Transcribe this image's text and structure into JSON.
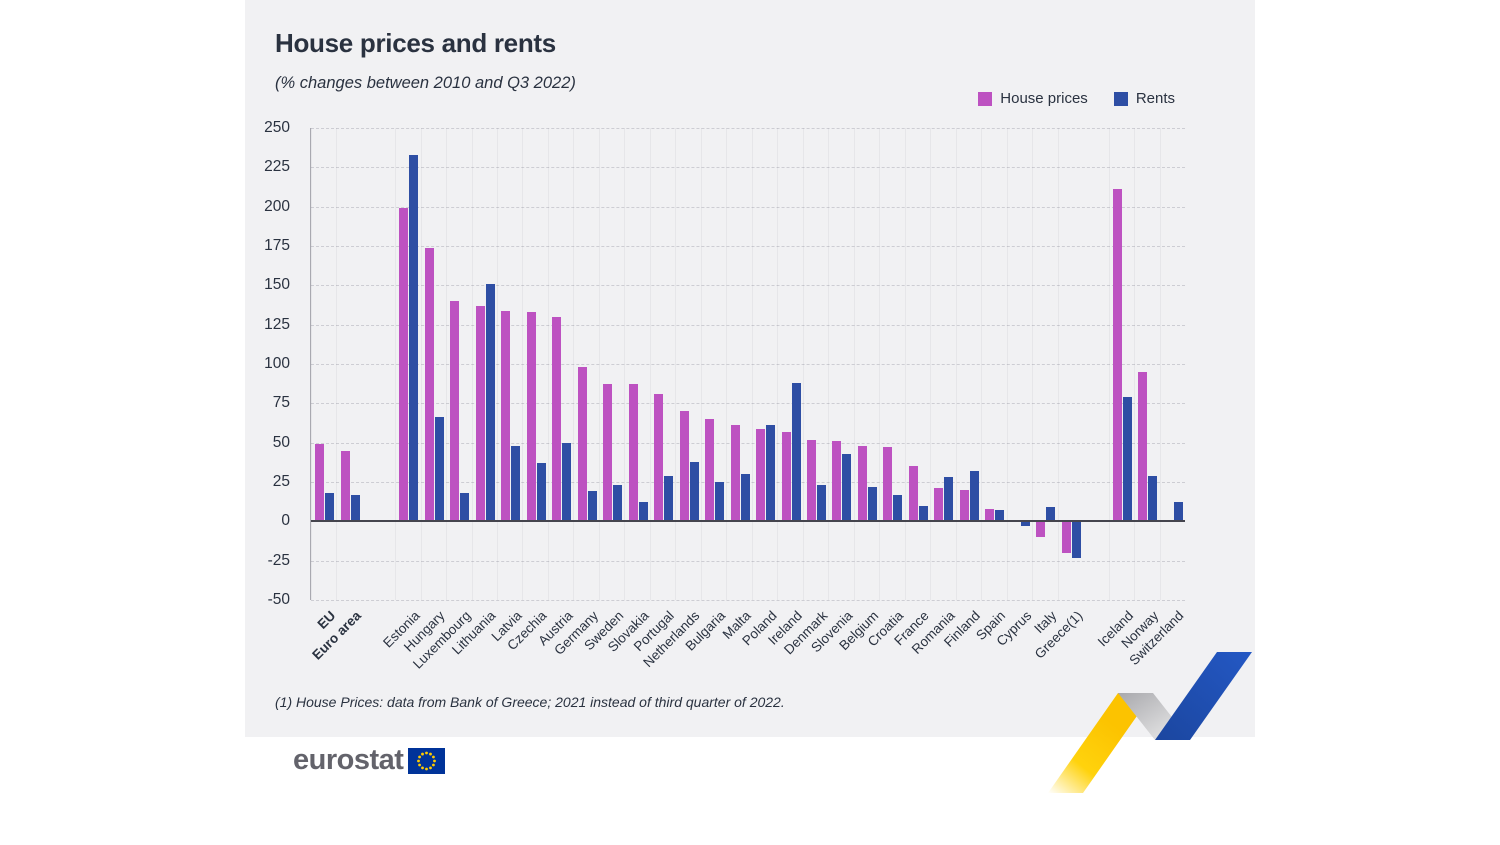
{
  "header": {
    "title": "House prices and rents",
    "subtitle": "(% changes between 2010 and Q3 2022)"
  },
  "legend": [
    {
      "label": "House prices",
      "color": "#bd52c1"
    },
    {
      "label": "Rents",
      "color": "#2e4ea4"
    }
  ],
  "chart_data": {
    "type": "bar",
    "title": "House prices and rents",
    "subtitle": "(% changes between 2010 and Q3 2022)",
    "ylabel": "% change",
    "ylim": [
      -50,
      250
    ],
    "ytick_step": 25,
    "grid": true,
    "legend_position": "top-right",
    "categories": [
      "EU",
      "Euro area",
      "Estonia",
      "Hungary",
      "Luxembourg",
      "Lithuania",
      "Latvia",
      "Czechia",
      "Austria",
      "Germany",
      "Sweden",
      "Slovakia",
      "Portugal",
      "Netherlands",
      "Bulgaria",
      "Malta",
      "Poland",
      "Ireland",
      "Denmark",
      "Slovenia",
      "Belgium",
      "Croatia",
      "France",
      "Romania",
      "Finland",
      "Spain",
      "Cyprus",
      "Italy",
      "Greece(1)",
      "Iceland",
      "Norway",
      "Switzerland"
    ],
    "bold_categories": [
      "EU",
      "Euro area"
    ],
    "group_gaps": [
      {
        "after_index": 1,
        "size": 1.3
      },
      {
        "after_index": 28,
        "size": 1.0
      }
    ],
    "series": [
      {
        "name": "House prices",
        "color": "#bd52c1",
        "values": [
          49,
          45,
          199,
          174,
          140,
          137,
          134,
          133,
          130,
          98,
          87,
          87,
          81,
          70,
          65,
          61,
          59,
          57,
          52,
          51,
          48,
          47,
          35,
          21,
          20,
          8,
          1,
          -10,
          -20,
          211,
          95,
          null
        ]
      },
      {
        "name": "Rents",
        "color": "#2e4ea4",
        "values": [
          18,
          17,
          233,
          66,
          18,
          151,
          48,
          37,
          50,
          19,
          23,
          12,
          29,
          38,
          25,
          30,
          61,
          88,
          23,
          43,
          22,
          17,
          10,
          28,
          32,
          7,
          -3,
          9,
          -23,
          79,
          29,
          12
        ]
      }
    ]
  },
  "footnote": {
    "text": "(1) House Prices: data from Bank of Greece; 2021 instead of third quarter of 2022."
  },
  "logo": {
    "text": "eurostat"
  },
  "colors": {
    "house_prices": "#bd52c1",
    "rents": "#2e4ea4",
    "panel_background": "#f1f1f3",
    "text": "#2a3240",
    "eu_flag_blue": "#003399",
    "eu_flag_yellow": "#ffcc00",
    "decoration_yellow": "#ffd000",
    "decoration_blue": "#2151b7"
  }
}
